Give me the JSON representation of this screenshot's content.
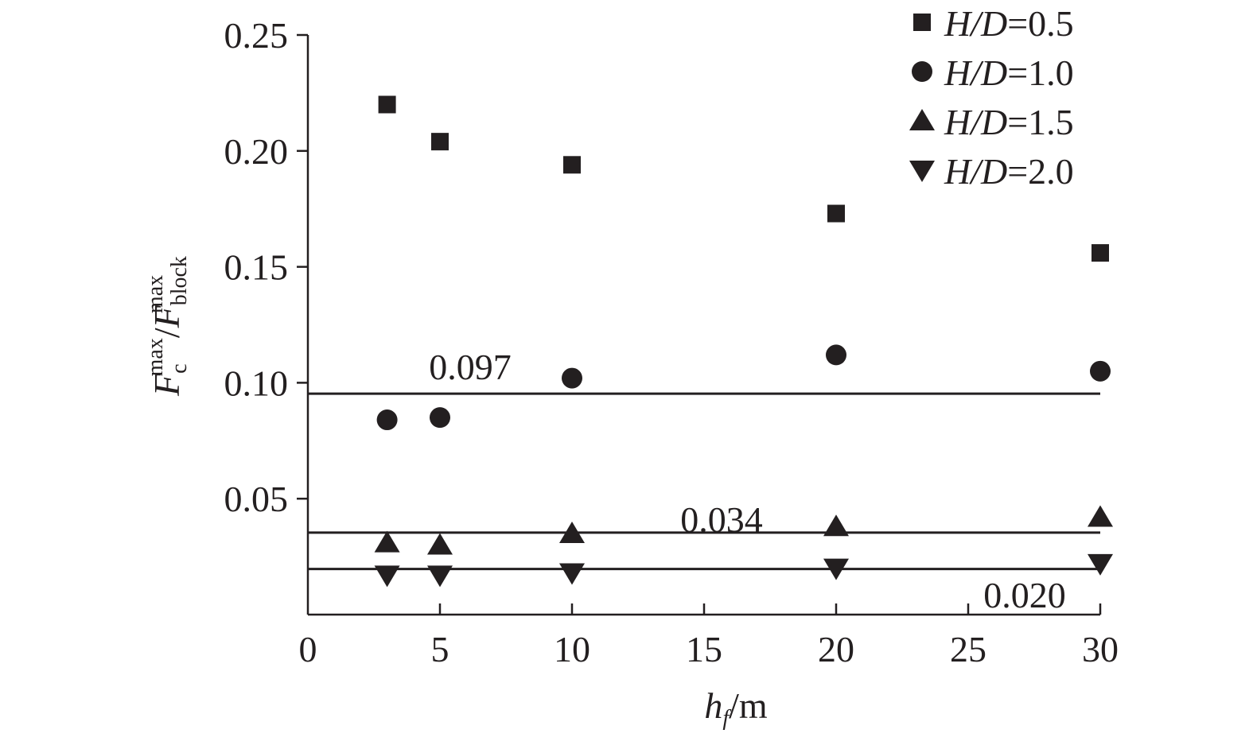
{
  "chart_data": {
    "type": "scatter",
    "xlabel": {
      "main": "h",
      "sub": "f",
      "unit": "/m"
    },
    "ylabel": {
      "F1": "F",
      "sub1": "c",
      "sup1": "max",
      "slash": "/",
      "F2": "F",
      "sub2": "block",
      "sup2": "max"
    },
    "xlim": [
      0,
      30
    ],
    "ylim": [
      0,
      0.25
    ],
    "x_ticks": [
      0,
      5,
      10,
      15,
      20,
      25,
      30
    ],
    "x_tick_labels": [
      "0",
      "5",
      "10",
      "15",
      "20",
      "25",
      "30"
    ],
    "y_ticks": [
      0.05,
      0.1,
      0.15,
      0.2,
      0.25
    ],
    "y_tick_labels": [
      "0.05",
      "0.10",
      "0.15",
      "0.20",
      "0.25"
    ],
    "legend_position": "top-right",
    "series": [
      {
        "name": "H/D=0.5",
        "legend_var": "H/D",
        "legend_val": "=0.5",
        "marker": "square",
        "x": [
          3,
          5,
          10,
          20,
          30
        ],
        "y": [
          0.22,
          0.204,
          0.194,
          0.173,
          0.156
        ]
      },
      {
        "name": "H/D=1.0",
        "legend_var": "H/D",
        "legend_val": "=1.0",
        "marker": "circle",
        "x": [
          3,
          5,
          10,
          20,
          30
        ],
        "y": [
          0.084,
          0.085,
          0.102,
          0.112,
          0.105
        ]
      },
      {
        "name": "H/D=1.5",
        "legend_var": "H/D",
        "legend_val": "=1.5",
        "marker": "triangle-up",
        "x": [
          3,
          5,
          10,
          20,
          30
        ],
        "y": [
          0.031,
          0.03,
          0.035,
          0.038,
          0.042
        ]
      },
      {
        "name": "H/D=2.0",
        "legend_var": "H/D",
        "legend_val": "=2.0",
        "marker": "triangle-down",
        "x": [
          3,
          5,
          10,
          20,
          30
        ],
        "y": [
          0.017,
          0.017,
          0.018,
          0.02,
          0.022
        ]
      }
    ],
    "reference_lines": [
      {
        "value": 0.097,
        "label": "0.097"
      },
      {
        "value": 0.034,
        "label": "0.034"
      },
      {
        "value": 0.02,
        "label": "0.020"
      }
    ]
  }
}
